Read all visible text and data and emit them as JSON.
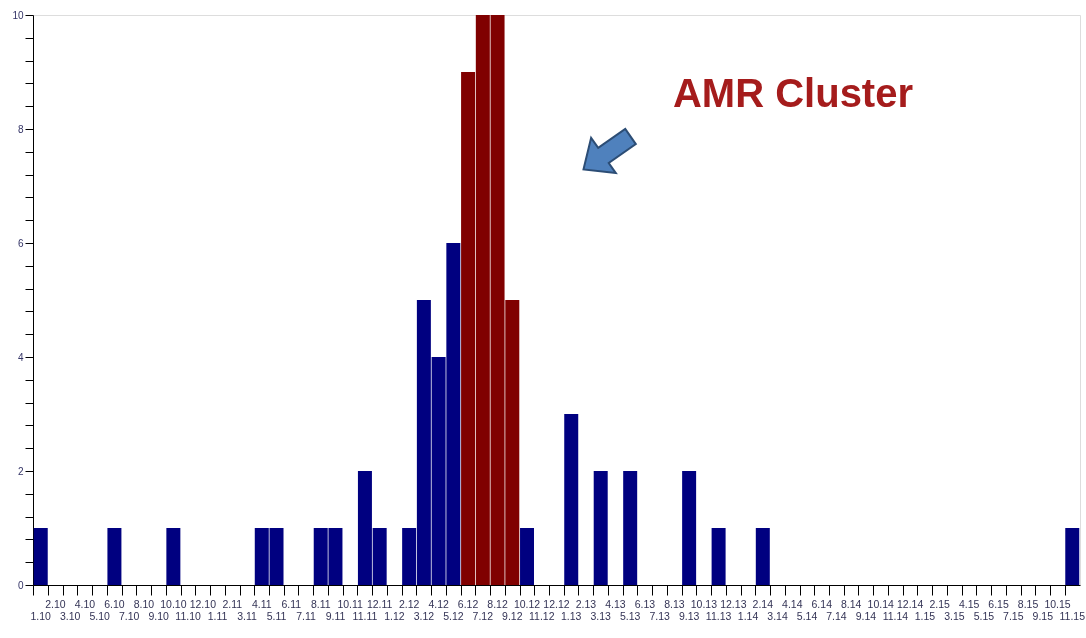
{
  "chart_data": {
    "type": "bar",
    "categories": [
      "1.10",
      "2.10",
      "3.10",
      "4.10",
      "5.10",
      "6.10",
      "7.10",
      "8.10",
      "9.10",
      "10.10",
      "11.10",
      "12.10",
      "1.11",
      "2.11",
      "3.11",
      "4.11",
      "5.11",
      "6.11",
      "7.11",
      "8.11",
      "9.11",
      "10.11",
      "11.11",
      "12.11",
      "1.12",
      "2.12",
      "3.12",
      "4.12",
      "5.12",
      "6.12",
      "7.12",
      "8.12",
      "9.12",
      "10.12",
      "11.12",
      "12.12",
      "1.13",
      "2.13",
      "3.13",
      "4.13",
      "5.13",
      "6.13",
      "7.13",
      "8.13",
      "9.13",
      "10.13",
      "11.13",
      "12.13",
      "1.14",
      "2.14",
      "3.14",
      "4.14",
      "5.14",
      "6.14",
      "7.14",
      "8.14",
      "9.14",
      "10.14",
      "11.14",
      "12.14",
      "1.15",
      "2.15",
      "3.15",
      "4.15",
      "5.15",
      "6.15",
      "7.15",
      "8.15",
      "9.15",
      "10.15",
      "11.15"
    ],
    "values": [
      1,
      0,
      0,
      0,
      0,
      1,
      0,
      0,
      0,
      1,
      0,
      0,
      0,
      0,
      0,
      1,
      1,
      0,
      0,
      1,
      1,
      0,
      2,
      1,
      0,
      1,
      5,
      4,
      6,
      9,
      10,
      10,
      5,
      1,
      0,
      0,
      3,
      0,
      2,
      0,
      2,
      0,
      0,
      0,
      2,
      0,
      1,
      0,
      0,
      1,
      0,
      0,
      0,
      0,
      0,
      0,
      0,
      0,
      0,
      0,
      0,
      0,
      0,
      0,
      0,
      0,
      0,
      0,
      0,
      0,
      1
    ],
    "colors": [
      "#000080",
      "#000080",
      "#000080",
      "#000080",
      "#000080",
      "#000080",
      "#000080",
      "#000080",
      "#000080",
      "#000080",
      "#000080",
      "#000080",
      "#000080",
      "#000080",
      "#000080",
      "#000080",
      "#000080",
      "#000080",
      "#000080",
      "#000080",
      "#000080",
      "#000080",
      "#000080",
      "#000080",
      "#000080",
      "#000080",
      "#000080",
      "#000080",
      "#000080",
      "#800000",
      "#800000",
      "#800000",
      "#800000",
      "#000080",
      "#000080",
      "#000080",
      "#000080",
      "#000080",
      "#000080",
      "#000080",
      "#000080",
      "#000080",
      "#000080",
      "#000080",
      "#000080",
      "#000080",
      "#000080",
      "#000080",
      "#000080",
      "#000080",
      "#000080",
      "#000080",
      "#000080",
      "#000080",
      "#000080",
      "#000080",
      "#000080",
      "#000080",
      "#000080",
      "#000080",
      "#000080",
      "#000080",
      "#000080",
      "#000080",
      "#000080",
      "#000080",
      "#000080",
      "#000080",
      "#000080",
      "#000080",
      "#000080"
    ],
    "ylim": [
      0,
      10
    ],
    "yticks": [
      0,
      {
        "value": 0.4,
        "label": null
      },
      {
        "value": 0.8,
        "label": null
      },
      {
        "value": 1.2,
        "label": null
      },
      {
        "value": 1.6,
        "label": null
      },
      2,
      {
        "value": 2.4,
        "label": null
      },
      {
        "value": 2.8,
        "label": null
      },
      {
        "value": 3.2,
        "label": null
      },
      {
        "value": 3.6,
        "label": null
      },
      4,
      {
        "value": 4.4,
        "label": null
      },
      {
        "value": 4.8,
        "label": null
      },
      {
        "value": 5.2,
        "label": null
      },
      {
        "value": 5.6,
        "label": null
      },
      6,
      {
        "value": 6.4,
        "label": null
      },
      {
        "value": 6.8,
        "label": null
      },
      {
        "value": 7.2,
        "label": null
      },
      {
        "value": 7.6,
        "label": null
      },
      8,
      {
        "value": 8.4,
        "label": null
      },
      {
        "value": 8.8,
        "label": null
      },
      {
        "value": 9.2,
        "label": null
      },
      {
        "value": 9.6,
        "label": null
      },
      10
    ],
    "annotations": [
      "AMR Cluster"
    ],
    "grid": false
  }
}
